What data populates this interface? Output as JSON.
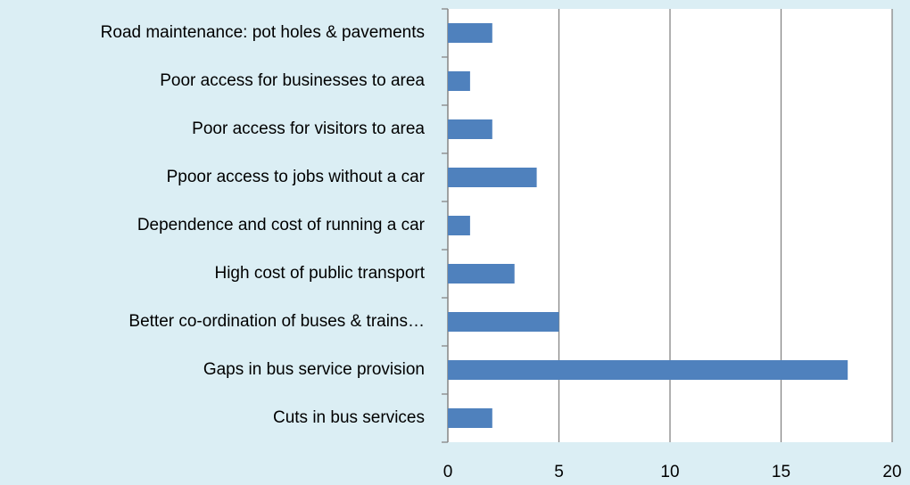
{
  "chart_data": {
    "type": "bar",
    "orientation": "horizontal",
    "categories": [
      "Road maintenance: pot holes & pavements",
      "Poor access for businesses to area",
      "Poor access for visitors to area",
      "Ppoor access to jobs without a car",
      "Dependence and cost of running a car",
      "High cost of public transport",
      "Better co-ordination of buses & trains…",
      "Gaps in bus service provision",
      "Cuts in bus services"
    ],
    "values": [
      2,
      1,
      2,
      4,
      1,
      3,
      5,
      18,
      2
    ],
    "color": "#4f81bd",
    "xlim": [
      0,
      20
    ],
    "xticks": [
      0,
      5,
      10,
      15,
      20
    ],
    "grid": true
  }
}
